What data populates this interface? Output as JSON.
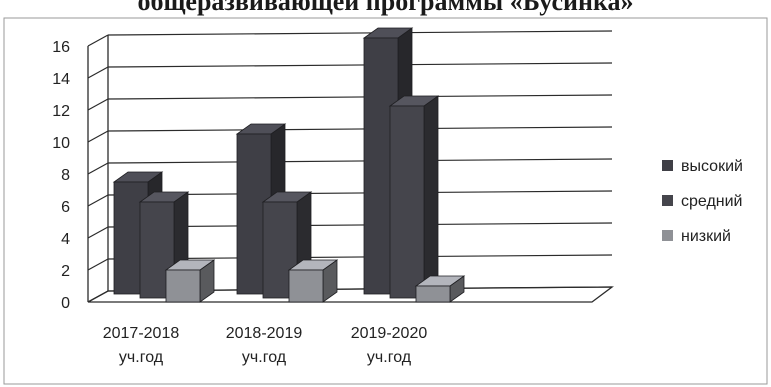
{
  "chart_data": {
    "type": "bar",
    "title": "общеразвивающей программы «Бусинка»",
    "categories": [
      "2017-2018 уч.год",
      "2018-2019 уч.год",
      "2019-2020 уч.год"
    ],
    "category_lines": [
      [
        "2017-2018",
        "уч.год"
      ],
      [
        "2018-2019",
        "уч.год"
      ],
      [
        "2019-2020",
        "уч.год"
      ]
    ],
    "series": [
      {
        "name": "высокий",
        "values": [
          7,
          10,
          16
        ],
        "color": "#3f3f46"
      },
      {
        "name": "средний",
        "values": [
          6,
          6,
          12
        ],
        "color": "#45454c"
      },
      {
        "name": "низкий",
        "values": [
          2,
          2,
          1
        ],
        "color": "#8f9196"
      }
    ],
    "ylim": [
      0,
      16
    ],
    "yticks": [
      0,
      2,
      4,
      6,
      8,
      10,
      12,
      14,
      16
    ],
    "xlabel": "",
    "ylabel": "",
    "grid": true,
    "legend": "right",
    "projection": "3d-clustered"
  }
}
